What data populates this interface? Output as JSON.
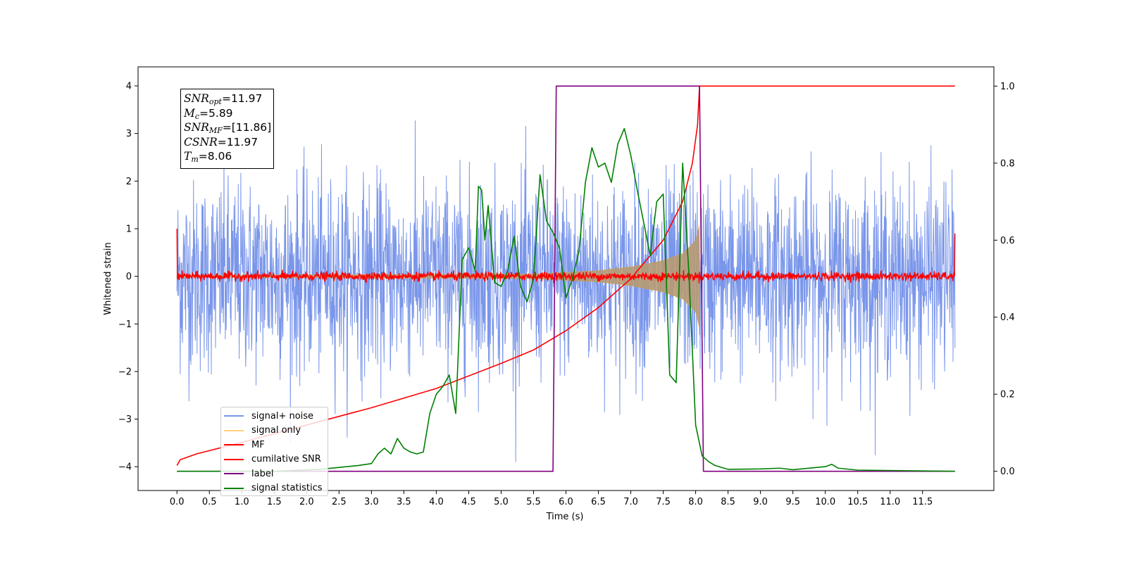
{
  "chart_data": {
    "type": "line",
    "xlabel": "Time (s)",
    "ylabel": "Whitened strain",
    "xlim": [
      -0.6,
      12.6
    ],
    "ylim": [
      -4.5,
      4.4
    ],
    "ylim_right": [
      -0.05,
      1.05
    ],
    "xticks": [
      "0.0",
      "0.5",
      "1.0",
      "1.5",
      "2.0",
      "2.5",
      "3.0",
      "3.5",
      "4.0",
      "4.5",
      "5.0",
      "5.5",
      "6.0",
      "6.5",
      "7.0",
      "7.5",
      "8.0",
      "8.5",
      "9.0",
      "9.5",
      "10.0",
      "10.5",
      "11.0",
      "11.5"
    ],
    "yticks_left": [
      "4",
      "3",
      "2",
      "1",
      "0",
      "−1",
      "−2",
      "−3",
      "−4"
    ],
    "yticks_right": [
      "1.0",
      "0.8",
      "0.6",
      "0.4",
      "0.2",
      "0.0"
    ],
    "stats": {
      "snr_opt": {
        "name": "SNR",
        "sub": "opt",
        "value": "=11.97"
      },
      "mc": {
        "name": "M",
        "sub": "c",
        "value": "=5.89"
      },
      "snr_mf": {
        "name": "SNR",
        "sub": "MF",
        "value": "=[11.86]"
      },
      "csnr": {
        "name": "CSNR",
        "value": "=11.97"
      },
      "tm": {
        "name": "T",
        "sub": "m",
        "value": "=8.06"
      }
    },
    "series": [
      {
        "name": "signal+ noise",
        "color": "#4169e1",
        "axis": "left",
        "style": "noise band about 0, typical amplitude ±1.5, peaks to about ±3.9",
        "x_range": [
          0.0,
          12.0
        ]
      },
      {
        "name": "signal only",
        "color": "#ffa500",
        "axis": "left",
        "style": "chirp envelope growing from ±0.05 near 5.5 s to about ±1.1 at 8.06 s, then zero",
        "envelope": [
          [
            0.0,
            0.02
          ],
          [
            5.5,
            0.05
          ],
          [
            6.5,
            0.12
          ],
          [
            7.0,
            0.2
          ],
          [
            7.5,
            0.33
          ],
          [
            7.8,
            0.48
          ],
          [
            8.0,
            0.75
          ],
          [
            8.06,
            1.1
          ],
          [
            8.07,
            0.0
          ]
        ]
      },
      {
        "name": "MF",
        "color": "#ff0000",
        "axis": "left",
        "style": "noise about 0 with amplitude ±0.15; starts at 1.0 at 0 s and ends near 0.9 at 12 s"
      },
      {
        "name": "cumilative SNR",
        "color": "#ff0000",
        "axis": "right",
        "points": [
          [
            0.0,
            0.015
          ],
          [
            0.05,
            0.03
          ],
          [
            0.3,
            0.045
          ],
          [
            1.0,
            0.075
          ],
          [
            2.0,
            0.12
          ],
          [
            3.0,
            0.165
          ],
          [
            4.0,
            0.215
          ],
          [
            5.0,
            0.28
          ],
          [
            5.5,
            0.315
          ],
          [
            6.0,
            0.365
          ],
          [
            6.5,
            0.425
          ],
          [
            7.0,
            0.5
          ],
          [
            7.5,
            0.6
          ],
          [
            7.8,
            0.7
          ],
          [
            7.95,
            0.8
          ],
          [
            8.03,
            0.9
          ],
          [
            8.06,
            1.0
          ],
          [
            12.0,
            1.0
          ]
        ]
      },
      {
        "name": "label",
        "color": "#800080",
        "axis": "right",
        "points": [
          [
            0.0,
            0.0
          ],
          [
            5.8,
            0.0
          ],
          [
            5.85,
            1.0
          ],
          [
            8.06,
            1.0
          ],
          [
            8.12,
            0.0
          ],
          [
            12.0,
            0.0
          ]
        ]
      },
      {
        "name": "signal statistics",
        "color": "#008000",
        "axis": "right",
        "points": [
          [
            0.0,
            0.0
          ],
          [
            1.5,
            0.0
          ],
          [
            2.2,
            0.005
          ],
          [
            2.8,
            0.015
          ],
          [
            3.0,
            0.02
          ],
          [
            3.1,
            0.045
          ],
          [
            3.2,
            0.06
          ],
          [
            3.3,
            0.045
          ],
          [
            3.4,
            0.085
          ],
          [
            3.5,
            0.06
          ],
          [
            3.6,
            0.05
          ],
          [
            3.7,
            0.045
          ],
          [
            3.8,
            0.05
          ],
          [
            3.9,
            0.15
          ],
          [
            4.0,
            0.2
          ],
          [
            4.1,
            0.22
          ],
          [
            4.2,
            0.25
          ],
          [
            4.3,
            0.15
          ],
          [
            4.4,
            0.55
          ],
          [
            4.5,
            0.58
          ],
          [
            4.6,
            0.52
          ],
          [
            4.65,
            0.74
          ],
          [
            4.7,
            0.73
          ],
          [
            4.75,
            0.6
          ],
          [
            4.8,
            0.69
          ],
          [
            4.9,
            0.49
          ],
          [
            5.0,
            0.48
          ],
          [
            5.1,
            0.52
          ],
          [
            5.2,
            0.61
          ],
          [
            5.3,
            0.48
          ],
          [
            5.4,
            0.44
          ],
          [
            5.5,
            0.5
          ],
          [
            5.6,
            0.77
          ],
          [
            5.7,
            0.65
          ],
          [
            5.8,
            0.62
          ],
          [
            5.9,
            0.58
          ],
          [
            6.0,
            0.45
          ],
          [
            6.1,
            0.5
          ],
          [
            6.2,
            0.57
          ],
          [
            6.3,
            0.75
          ],
          [
            6.4,
            0.84
          ],
          [
            6.5,
            0.79
          ],
          [
            6.6,
            0.8
          ],
          [
            6.7,
            0.75
          ],
          [
            6.8,
            0.85
          ],
          [
            6.9,
            0.89
          ],
          [
            7.0,
            0.82
          ],
          [
            7.1,
            0.73
          ],
          [
            7.3,
            0.56
          ],
          [
            7.4,
            0.7
          ],
          [
            7.5,
            0.72
          ],
          [
            7.6,
            0.25
          ],
          [
            7.7,
            0.23
          ],
          [
            7.8,
            0.8
          ],
          [
            7.9,
            0.5
          ],
          [
            8.0,
            0.12
          ],
          [
            8.1,
            0.04
          ],
          [
            8.2,
            0.025
          ],
          [
            8.3,
            0.015
          ],
          [
            8.5,
            0.005
          ],
          [
            9.0,
            0.006
          ],
          [
            9.3,
            0.008
          ],
          [
            9.5,
            0.004
          ],
          [
            10.0,
            0.012
          ],
          [
            10.1,
            0.018
          ],
          [
            10.2,
            0.008
          ],
          [
            10.5,
            0.003
          ],
          [
            12.0,
            0.0
          ]
        ]
      }
    ],
    "legend_position": "lower left"
  }
}
